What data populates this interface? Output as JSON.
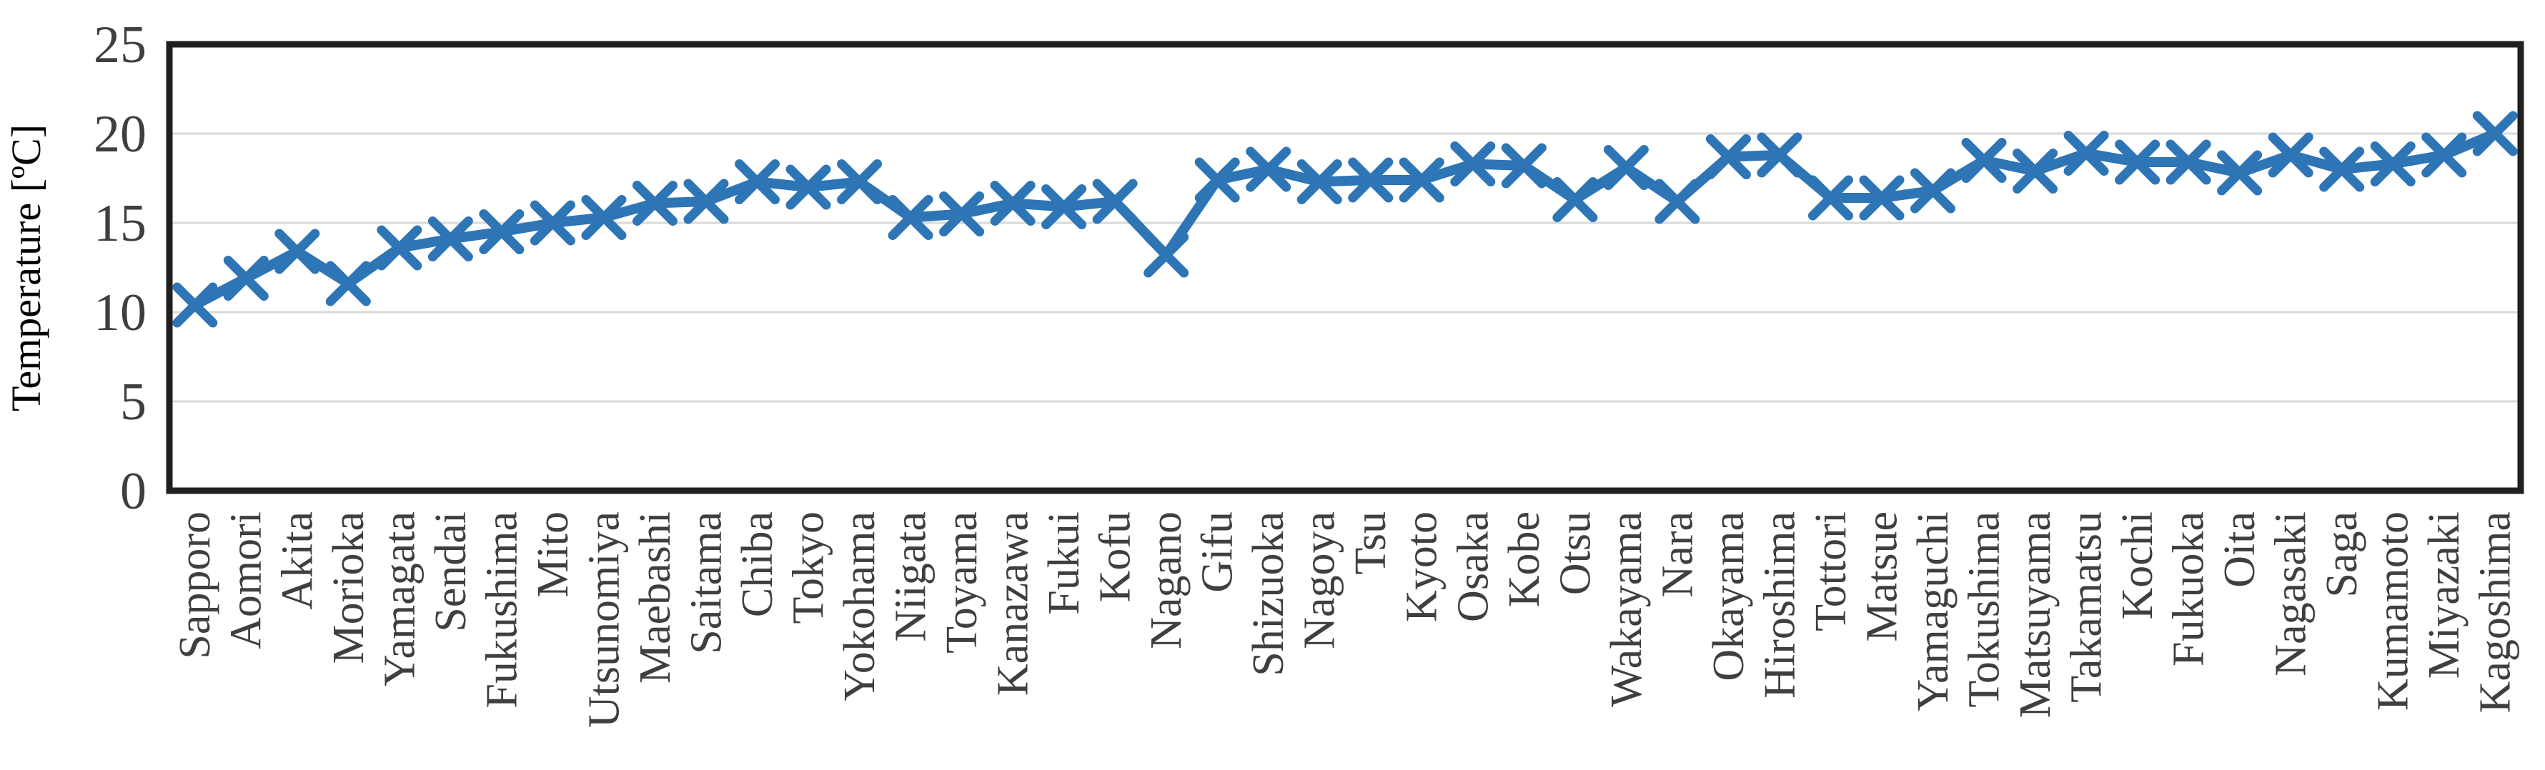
{
  "chart_data": {
    "type": "line",
    "title": "",
    "xlabel": "",
    "ylabel": "Temperature [ºC]",
    "ylim": [
      0,
      25
    ],
    "yticks": [
      0,
      5,
      10,
      15,
      20,
      25
    ],
    "grid": "horizontal",
    "legend": "none",
    "marker": "x",
    "categories": [
      "Sapporo",
      "Aomori",
      "Akita",
      "Morioka",
      "Yamagata",
      "Sendai",
      "Fukushima",
      "Mito",
      "Utsunomiya",
      "Maebashi",
      "Saitama",
      "Chiba",
      "Tokyo",
      "Yokohama",
      "Niigata",
      "Toyama",
      "Kanazawa",
      "Fukui",
      "Kofu",
      "Nagano",
      "Gifu",
      "Shizuoka",
      "Nagoya",
      "Tsu",
      "Kyoto",
      "Osaka",
      "Kobe",
      "Otsu",
      "Wakayama",
      "Nara",
      "Okayama",
      "Hiroshima",
      "Tottori",
      "Matsue",
      "Yamaguchi",
      "Tokushima",
      "Matsuyama",
      "Takamatsu",
      "Kochi",
      "Fukuoka",
      "Oita",
      "Nagasaki",
      "Saga",
      "Kumamoto",
      "Miyazaki",
      "Kagoshima"
    ],
    "series": [
      {
        "name": "Temperature",
        "values": [
          10.4,
          11.9,
          13.4,
          11.6,
          13.6,
          14.1,
          14.5,
          15.0,
          15.3,
          16.1,
          16.2,
          17.3,
          17.0,
          17.3,
          15.3,
          15.5,
          16.1,
          15.9,
          16.2,
          13.2,
          17.4,
          18.0,
          17.3,
          17.4,
          17.4,
          18.3,
          18.2,
          16.3,
          18.1,
          16.2,
          18.7,
          18.8,
          16.4,
          16.4,
          16.8,
          18.5,
          17.9,
          18.9,
          18.4,
          18.4,
          17.8,
          18.8,
          18.0,
          18.3,
          18.8,
          20.0
        ]
      }
    ]
  },
  "style": {
    "line_color": "#2E75B6",
    "grid_color": "#D9D9D9",
    "border_color": "#1F1F1F",
    "text_color": "#3F3F3F",
    "background": "#FFFFFF"
  }
}
